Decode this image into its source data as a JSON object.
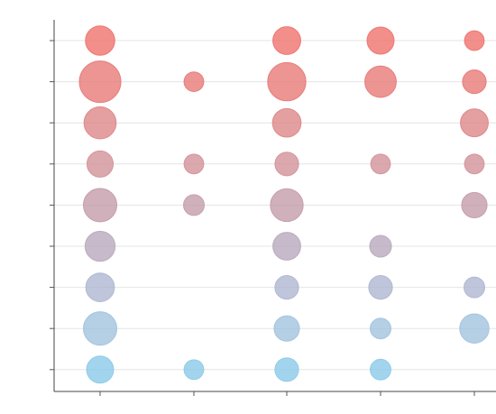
{
  "chart_data": {
    "type": "scatter",
    "title": "",
    "xlabel": "",
    "ylabel": "",
    "x_categories": [
      "",
      "",
      "",
      "",
      ""
    ],
    "y_categories": [
      "",
      "",
      "",
      "",
      "",
      "",
      "",
      "",
      ""
    ],
    "grid": true,
    "colors": [
      "#88c9e8",
      "#a8bfda",
      "#b1abc4",
      "#c39aa8",
      "#d58d91",
      "#e57a78",
      "#ee6f6a"
    ],
    "max_size": 4,
    "points": [
      {
        "x": 0,
        "y": 0,
        "size": 2.0
      },
      {
        "x": 0,
        "y": 1,
        "size": 4.0
      },
      {
        "x": 0,
        "y": 2,
        "size": 2.4
      },
      {
        "x": 0,
        "y": 3,
        "size": 1.6
      },
      {
        "x": 0,
        "y": 4,
        "size": 2.6
      },
      {
        "x": 0,
        "y": 5,
        "size": 2.1
      },
      {
        "x": 0,
        "y": 6,
        "size": 1.9
      },
      {
        "x": 0,
        "y": 7,
        "size": 2.6
      },
      {
        "x": 0,
        "y": 8,
        "size": 1.7
      },
      {
        "x": 1,
        "y": 1,
        "size": 0.9
      },
      {
        "x": 1,
        "y": 3,
        "size": 0.9
      },
      {
        "x": 1,
        "y": 4,
        "size": 1.0
      },
      {
        "x": 1,
        "y": 8,
        "size": 0.9
      },
      {
        "x": 2,
        "y": 0,
        "size": 1.8
      },
      {
        "x": 2,
        "y": 1,
        "size": 3.4
      },
      {
        "x": 2,
        "y": 2,
        "size": 1.9
      },
      {
        "x": 2,
        "y": 3,
        "size": 1.3
      },
      {
        "x": 2,
        "y": 4,
        "size": 2.5
      },
      {
        "x": 2,
        "y": 5,
        "size": 1.8
      },
      {
        "x": 2,
        "y": 6,
        "size": 1.3
      },
      {
        "x": 2,
        "y": 7,
        "size": 1.5
      },
      {
        "x": 2,
        "y": 8,
        "size": 1.3
      },
      {
        "x": 3,
        "y": 0,
        "size": 1.7
      },
      {
        "x": 3,
        "y": 1,
        "size": 2.3
      },
      {
        "x": 3,
        "y": 3,
        "size": 0.9
      },
      {
        "x": 3,
        "y": 5,
        "size": 1.1
      },
      {
        "x": 3,
        "y": 6,
        "size": 1.3
      },
      {
        "x": 3,
        "y": 7,
        "size": 1.0
      },
      {
        "x": 3,
        "y": 8,
        "size": 1.0
      },
      {
        "x": 4,
        "y": 0,
        "size": 0.9
      },
      {
        "x": 4,
        "y": 1,
        "size": 1.3
      },
      {
        "x": 4,
        "y": 2,
        "size": 1.8
      },
      {
        "x": 4,
        "y": 3,
        "size": 0.9
      },
      {
        "x": 4,
        "y": 4,
        "size": 1.5
      },
      {
        "x": 4,
        "y": 6,
        "size": 1.0
      },
      {
        "x": 4,
        "y": 7,
        "size": 2.0
      }
    ]
  }
}
